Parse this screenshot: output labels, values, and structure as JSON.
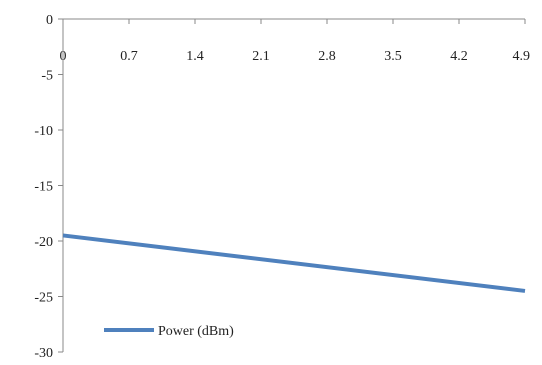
{
  "chart_data": {
    "type": "line",
    "x_ticks": [
      "0",
      "0.7",
      "1.4",
      "2.1",
      "2.8",
      "3.5",
      "4.2",
      "4.9"
    ],
    "y_ticks": [
      "0",
      "-5",
      "-10",
      "-15",
      "-20",
      "-25",
      "-30"
    ],
    "xlim": [
      0,
      4.9
    ],
    "ylim": [
      -30,
      0
    ],
    "x_axis_position": "top",
    "grid": false,
    "legend_position": "bottom-left",
    "series": [
      {
        "name": "Power (dBm)",
        "color": "#4f81bd",
        "x": [
          0,
          4.9
        ],
        "y": [
          -19.5,
          -24.5
        ]
      }
    ]
  }
}
